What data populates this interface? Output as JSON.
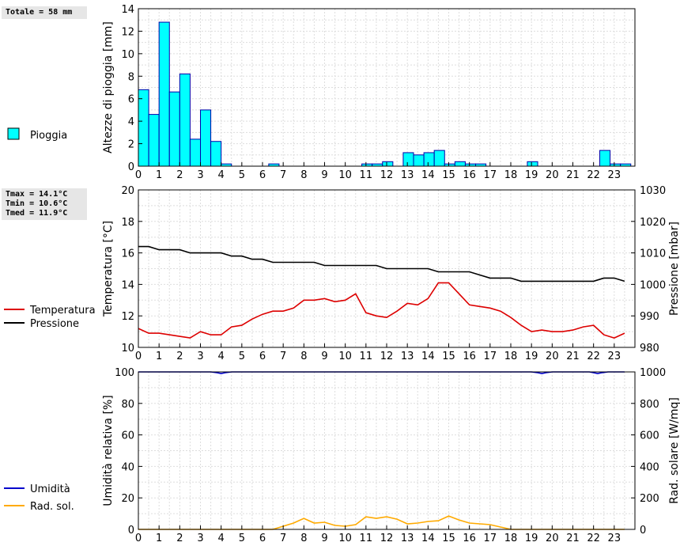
{
  "stats": {
    "rain_total": "Totale = 58 mm",
    "tmax": "Tmax = 14.1°C",
    "tmin": "Tmin = 10.6°C",
    "tmed": "Tmed = 11.9°C"
  },
  "legends": {
    "rain": "Pioggia",
    "temperature": "Temperatura",
    "pressure": "Pressione",
    "humidity": "Umidità",
    "solar": "Rad. sol."
  },
  "colors": {
    "rain_fill": "#00ffff",
    "rain_edge": "#0000aa",
    "temperature": "#dd0000",
    "pressure": "#000000",
    "humidity": "#0000cc",
    "solar": "#ffaa00",
    "grid": "#dddddd"
  },
  "x_ticks": [
    "0",
    "1",
    "2",
    "3",
    "4",
    "5",
    "6",
    "7",
    "8",
    "9",
    "10",
    "11",
    "12",
    "13",
    "14",
    "15",
    "16",
    "17",
    "18",
    "19",
    "20",
    "21",
    "22",
    "23"
  ],
  "chart_data": [
    {
      "type": "bar",
      "ylabel": "Altezze di pioggia [mm]",
      "ylim": [
        0,
        14
      ],
      "yticks": [
        "0",
        "2",
        "4",
        "6",
        "8",
        "10",
        "12",
        "14"
      ],
      "xlim": [
        0,
        24
      ],
      "bar_width_hours": 0.5,
      "series": [
        {
          "name": "Pioggia",
          "x": [
            0,
            0.5,
            1,
            1.5,
            2,
            2.5,
            3,
            3.5,
            4,
            6.3,
            10.8,
            11.3,
            11.8,
            12.8,
            13.3,
            13.8,
            14.3,
            14.8,
            15.3,
            15.8,
            16.3,
            18.8,
            22.3,
            22.8,
            23.3
          ],
          "values": [
            6.8,
            4.6,
            12.8,
            6.6,
            8.2,
            2.4,
            5.0,
            2.2,
            0.2,
            0.2,
            0.2,
            0.2,
            0.4,
            1.2,
            1.0,
            1.2,
            1.4,
            0.2,
            0.4,
            0.2,
            0.2,
            0.4,
            1.4,
            0.2,
            0.2
          ]
        }
      ]
    },
    {
      "type": "line",
      "ylabel": "Temperatura [°C]",
      "y2label": "Pressione [mbar]",
      "ylim": [
        10,
        20
      ],
      "y2lim": [
        980,
        1030
      ],
      "yticks": [
        "10",
        "12",
        "14",
        "16",
        "18",
        "20"
      ],
      "y2ticks": [
        "980",
        "990",
        "1000",
        "1010",
        "1020",
        "1030"
      ],
      "xlim": [
        0,
        24
      ],
      "series": [
        {
          "name": "Temperatura",
          "axis": "left",
          "x": [
            0,
            0.5,
            1,
            1.5,
            2,
            2.5,
            3,
            3.5,
            4,
            4.5,
            5,
            5.5,
            6,
            6.5,
            7,
            7.5,
            8,
            8.5,
            9,
            9.5,
            10,
            10.5,
            11,
            11.5,
            12,
            12.5,
            13,
            13.5,
            14,
            14.5,
            15,
            15.5,
            16,
            16.5,
            17,
            17.5,
            18,
            18.5,
            19,
            19.5,
            20,
            20.5,
            21,
            21.5,
            22,
            22.5,
            23,
            23.5
          ],
          "values": [
            11.2,
            10.9,
            10.9,
            10.8,
            10.7,
            10.6,
            11.0,
            10.8,
            10.8,
            11.3,
            11.4,
            11.8,
            12.1,
            12.3,
            12.3,
            12.5,
            13.0,
            13.0,
            13.1,
            12.9,
            13.0,
            13.4,
            12.2,
            12.0,
            11.9,
            12.3,
            12.8,
            12.7,
            13.1,
            14.1,
            14.1,
            13.4,
            12.7,
            12.6,
            12.5,
            12.3,
            11.9,
            11.4,
            11.0,
            11.1,
            11.0,
            11.0,
            11.1,
            11.3,
            11.4,
            10.8,
            10.6,
            10.9
          ]
        },
        {
          "name": "Pressione",
          "axis": "right",
          "x": [
            0,
            0.5,
            1,
            1.5,
            2,
            2.5,
            3,
            3.5,
            4,
            4.5,
            5,
            5.5,
            6,
            6.5,
            7,
            7.5,
            8,
            8.5,
            9,
            9.5,
            10,
            10.5,
            11,
            11.5,
            12,
            12.5,
            13,
            13.5,
            14,
            14.5,
            15,
            15.5,
            16,
            16.5,
            17,
            17.5,
            18,
            18.5,
            19,
            19.5,
            20,
            20.5,
            21,
            21.5,
            22,
            22.5,
            23,
            23.5
          ],
          "values": [
            1012,
            1012,
            1011,
            1011,
            1011,
            1010,
            1010,
            1010,
            1010,
            1009,
            1009,
            1008,
            1008,
            1007,
            1007,
            1007,
            1007,
            1007,
            1006,
            1006,
            1006,
            1006,
            1006,
            1006,
            1005,
            1005,
            1005,
            1005,
            1005,
            1004,
            1004,
            1004,
            1004,
            1003,
            1002,
            1002,
            1002,
            1001,
            1001,
            1001,
            1001,
            1001,
            1001,
            1001,
            1001,
            1002,
            1002,
            1001
          ]
        }
      ]
    },
    {
      "type": "line",
      "ylabel": "Umidità relativa [%]",
      "y2label": "Rad. solare [W/mq]",
      "ylim": [
        0,
        100
      ],
      "y2lim": [
        0,
        1000
      ],
      "yticks": [
        "0",
        "20",
        "40",
        "60",
        "80",
        "100"
      ],
      "y2ticks": [
        "0",
        "200",
        "400",
        "600",
        "800",
        "1000"
      ],
      "xlim": [
        0,
        24
      ],
      "series": [
        {
          "name": "Umidità",
          "axis": "left",
          "x": [
            0,
            3.5,
            3.8,
            4.0,
            4.2,
            4.5,
            19,
            19.3,
            19.5,
            19.7,
            20,
            21.8,
            22,
            22.2,
            22.4,
            22.7,
            23.5
          ],
          "values": [
            100,
            100,
            99.5,
            99,
            99.5,
            100,
            100,
            99.5,
            99,
            99.5,
            100,
            100,
            99.5,
            99,
            99.5,
            100,
            100
          ]
        },
        {
          "name": "Rad. sol.",
          "axis": "right",
          "x": [
            0,
            6.5,
            7,
            7.5,
            8,
            8.5,
            9,
            9.5,
            10,
            10.5,
            11,
            11.5,
            12,
            12.5,
            13,
            13.5,
            14,
            14.5,
            15,
            15.5,
            16,
            16.5,
            17,
            17.5,
            18,
            23.5
          ],
          "values": [
            0,
            0,
            20,
            40,
            70,
            40,
            45,
            25,
            20,
            30,
            80,
            70,
            80,
            65,
            35,
            40,
            50,
            55,
            85,
            60,
            40,
            35,
            30,
            15,
            0,
            0
          ]
        }
      ]
    }
  ]
}
